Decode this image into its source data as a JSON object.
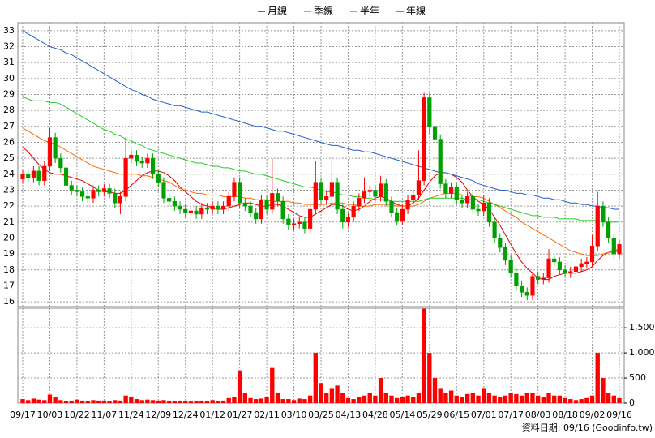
{
  "chart_data": {
    "type": "candlestick",
    "footer": "資料日期: 09/16 (Goodinfo.tw)",
    "categories": [
      "09/17",
      null,
      null,
      null,
      null,
      "10/03",
      null,
      null,
      null,
      null,
      "10/22",
      null,
      null,
      null,
      null,
      "11/07",
      null,
      null,
      null,
      null,
      "11/24",
      null,
      null,
      null,
      null,
      "12/09",
      null,
      null,
      null,
      null,
      "12/24",
      null,
      null,
      null,
      null,
      "01/12",
      null,
      null,
      null,
      null,
      "01/27",
      null,
      null,
      null,
      null,
      "02/11",
      null,
      null,
      null,
      null,
      "03/10",
      null,
      null,
      null,
      null,
      "03/25",
      null,
      null,
      null,
      null,
      "04/13",
      null,
      null,
      null,
      null,
      "04/28",
      null,
      null,
      null,
      null,
      "05/14",
      null,
      null,
      null,
      null,
      "05/29",
      null,
      null,
      null,
      null,
      "06/15",
      null,
      null,
      null,
      null,
      "07/01",
      null,
      null,
      null,
      null,
      "07/17",
      null,
      null,
      null,
      null,
      "08/03",
      null,
      null,
      null,
      null,
      "08/18",
      null,
      null,
      null,
      null,
      "09/02",
      null,
      null,
      null,
      null,
      "09/16"
    ],
    "up_color": "#ff0000",
    "down_color": "#00a000",
    "volume_color": "#ff0000",
    "open": [
      23.7,
      24.0,
      23.8,
      24.2,
      23.6,
      24.5,
      26.3,
      25.0,
      24.4,
      23.3,
      23.0,
      22.9,
      22.6,
      22.5,
      23.0,
      22.9,
      23.1,
      22.8,
      22.2,
      22.6,
      25.0,
      25.2,
      24.8,
      24.7,
      25.0,
      24.0,
      23.5,
      22.5,
      22.3,
      22.0,
      21.8,
      21.6,
      21.7,
      21.5,
      21.9,
      21.8,
      22.0,
      21.8,
      22.0,
      22.6,
      23.5,
      22.2,
      22.0,
      21.6,
      21.2,
      22.4,
      21.8,
      22.8,
      22.3,
      21.2,
      20.8,
      20.9,
      21.0,
      20.6,
      21.8,
      23.5,
      22.4,
      22.6,
      23.5,
      21.8,
      21.0,
      21.3,
      22.0,
      22.5,
      22.9,
      23.0,
      22.6,
      23.4,
      22.3,
      21.6,
      21.1,
      21.8,
      22.4,
      22.7,
      23.6,
      28.8,
      27.0,
      26.2,
      23.4,
      22.8,
      23.2,
      22.4,
      22.2,
      22.6,
      21.8,
      21.7,
      22.2,
      21.0,
      20.0,
      19.4,
      18.6,
      17.8,
      17.0,
      16.6,
      16.4,
      17.6,
      17.4,
      17.5,
      18.7,
      18.5,
      18.0,
      17.8,
      17.9,
      18.2,
      18.4,
      18.5,
      19.5,
      22.0,
      21.0,
      20.0,
      19.0
    ],
    "high": [
      24.3,
      24.3,
      24.5,
      24.5,
      24.8,
      26.9,
      26.6,
      25.3,
      24.7,
      23.6,
      23.3,
      23.2,
      22.9,
      23.3,
      23.3,
      23.4,
      23.4,
      23.1,
      22.9,
      26.3,
      25.5,
      25.5,
      25.1,
      25.3,
      25.3,
      24.3,
      23.8,
      22.8,
      22.6,
      22.3,
      22.1,
      22.0,
      22.0,
      22.2,
      22.2,
      22.3,
      22.3,
      22.3,
      22.9,
      23.8,
      23.8,
      22.5,
      22.3,
      21.9,
      22.7,
      22.7,
      25.0,
      23.1,
      22.6,
      21.5,
      21.2,
      21.3,
      21.3,
      22.1,
      24.8,
      23.8,
      22.9,
      24.8,
      23.8,
      22.1,
      21.6,
      22.3,
      22.8,
      23.8,
      23.3,
      23.3,
      23.9,
      23.7,
      22.6,
      21.9,
      22.1,
      22.7,
      23.0,
      25.5,
      29.1,
      29.1,
      27.3,
      26.5,
      23.7,
      23.5,
      23.5,
      22.7,
      22.9,
      22.9,
      22.1,
      22.7,
      22.5,
      21.3,
      20.3,
      19.7,
      18.9,
      18.1,
      17.3,
      16.9,
      17.9,
      17.9,
      17.8,
      19.3,
      19.0,
      18.8,
      18.3,
      18.2,
      18.5,
      18.7,
      18.8,
      20.2,
      22.9,
      22.3,
      21.3,
      20.3,
      19.9
    ],
    "low": [
      23.4,
      23.5,
      23.5,
      23.3,
      23.3,
      24.2,
      24.7,
      24.1,
      23.0,
      22.7,
      22.6,
      22.3,
      22.2,
      22.2,
      22.6,
      22.6,
      22.5,
      21.9,
      21.5,
      22.3,
      24.7,
      24.5,
      24.4,
      24.4,
      23.7,
      23.2,
      22.2,
      22.0,
      21.7,
      21.5,
      21.3,
      21.3,
      21.2,
      21.2,
      21.5,
      21.5,
      21.5,
      21.5,
      21.7,
      22.3,
      21.9,
      21.7,
      21.3,
      20.9,
      20.9,
      21.5,
      21.5,
      22.0,
      20.9,
      20.5,
      20.5,
      20.6,
      20.3,
      20.3,
      21.5,
      22.1,
      22.1,
      22.3,
      21.5,
      20.6,
      20.7,
      21.0,
      21.7,
      22.2,
      22.6,
      22.3,
      22.3,
      22.0,
      21.3,
      20.8,
      20.8,
      21.5,
      22.1,
      22.4,
      23.3,
      26.5,
      25.6,
      23.1,
      22.5,
      22.5,
      22.1,
      21.9,
      21.9,
      21.5,
      21.4,
      21.4,
      20.7,
      19.7,
      19.1,
      18.3,
      17.5,
      16.7,
      16.3,
      16.1,
      16.1,
      17.1,
      17.1,
      17.2,
      18.2,
      17.7,
      17.5,
      17.5,
      17.6,
      17.9,
      18.1,
      18.2,
      19.2,
      20.7,
      19.7,
      18.7,
      18.7
    ],
    "close": [
      24.0,
      23.8,
      24.2,
      23.6,
      24.5,
      26.3,
      25.0,
      24.4,
      23.3,
      23.0,
      22.9,
      22.6,
      22.5,
      23.0,
      22.9,
      23.1,
      22.8,
      22.2,
      22.6,
      25.0,
      25.2,
      24.8,
      24.7,
      25.0,
      24.0,
      23.5,
      22.5,
      22.3,
      22.0,
      21.8,
      21.6,
      21.7,
      21.5,
      21.9,
      21.8,
      22.0,
      21.8,
      22.0,
      22.6,
      23.5,
      22.2,
      22.0,
      21.6,
      21.2,
      22.4,
      21.8,
      22.8,
      22.3,
      21.2,
      20.8,
      20.9,
      21.0,
      20.6,
      21.8,
      23.5,
      22.4,
      22.6,
      23.5,
      21.8,
      21.0,
      21.3,
      22.0,
      22.5,
      22.9,
      23.0,
      22.6,
      23.4,
      22.3,
      21.6,
      21.1,
      21.8,
      22.4,
      22.7,
      23.6,
      28.8,
      27.0,
      26.2,
      23.4,
      22.8,
      23.2,
      22.4,
      22.2,
      22.6,
      21.8,
      21.7,
      22.2,
      21.0,
      20.0,
      19.4,
      18.6,
      17.8,
      17.0,
      16.6,
      16.4,
      17.6,
      17.4,
      17.5,
      18.7,
      18.5,
      18.0,
      17.8,
      17.9,
      18.2,
      18.4,
      18.5,
      19.5,
      22.0,
      21.0,
      20.0,
      19.0,
      19.6
    ],
    "volume": [
      80,
      60,
      90,
      70,
      60,
      170,
      120,
      60,
      40,
      50,
      70,
      50,
      40,
      60,
      50,
      50,
      40,
      60,
      50,
      150,
      120,
      80,
      60,
      70,
      60,
      50,
      60,
      40,
      40,
      50,
      40,
      30,
      40,
      50,
      40,
      60,
      40,
      50,
      100,
      120,
      650,
      200,
      100,
      80,
      90,
      120,
      700,
      200,
      80,
      80,
      60,
      90,
      80,
      150,
      1000,
      400,
      200,
      300,
      350,
      200,
      100,
      80,
      120,
      150,
      200,
      150,
      500,
      200,
      150,
      100,
      120,
      150,
      120,
      200,
      1880,
      1000,
      500,
      300,
      200,
      250,
      150,
      120,
      180,
      200,
      150,
      300,
      200,
      150,
      120,
      150,
      200,
      180,
      150,
      200,
      200,
      150,
      120,
      200,
      150,
      150,
      100,
      80,
      60,
      80,
      100,
      150,
      1000,
      500,
      200,
      150,
      100
    ],
    "series": [
      {
        "name": "月線",
        "color": "#e00000",
        "values": [
          25.7,
          25.4,
          25.0,
          24.6,
          24.3,
          24.1,
          24.0,
          24.0,
          23.9,
          23.8,
          23.7,
          23.6,
          23.4,
          23.2,
          23.0,
          22.9,
          22.9,
          22.8,
          22.8,
          23.0,
          23.3,
          23.6,
          23.9,
          24.1,
          24.2,
          24.2,
          24.1,
          23.9,
          23.6,
          23.2,
          22.9,
          22.6,
          22.3,
          22.1,
          22.0,
          21.9,
          21.8,
          21.8,
          21.9,
          22.0,
          22.1,
          22.2,
          22.2,
          22.1,
          22.0,
          22.0,
          22.1,
          22.1,
          22.0,
          21.8,
          21.6,
          21.4,
          21.3,
          21.3,
          21.5,
          21.7,
          21.9,
          22.1,
          22.1,
          22.0,
          21.8,
          21.7,
          21.8,
          22.0,
          22.3,
          22.5,
          22.6,
          22.5,
          22.3,
          22.1,
          22.0,
          22.0,
          22.2,
          22.5,
          23.0,
          23.5,
          23.9,
          24.1,
          24.1,
          24.0,
          23.8,
          23.5,
          23.0,
          22.6,
          22.3,
          22.1,
          21.8,
          21.3,
          20.8,
          20.2,
          19.6,
          19.0,
          18.5,
          18.1,
          17.8,
          17.5,
          17.4,
          17.4,
          17.6,
          17.7,
          17.8,
          17.8,
          17.8,
          17.9,
          18.0,
          18.2,
          18.6,
          18.9,
          19.1,
          19.2,
          19.3
        ]
      },
      {
        "name": "季線",
        "color": "#ff6a00",
        "values": [
          26.9,
          26.7,
          26.5,
          26.3,
          26.1,
          26.0,
          25.9,
          25.7,
          25.5,
          25.3,
          25.1,
          24.9,
          24.7,
          24.5,
          24.4,
          24.3,
          24.2,
          24.1,
          24.0,
          24.0,
          24.0,
          24.0,
          23.9,
          23.9,
          23.8,
          23.7,
          23.6,
          23.5,
          23.3,
          23.1,
          23.0,
          22.9,
          22.8,
          22.8,
          22.7,
          22.7,
          22.7,
          22.6,
          22.6,
          22.6,
          22.6,
          22.5,
          22.5,
          22.4,
          22.4,
          22.4,
          22.3,
          22.3,
          22.3,
          22.3,
          22.2,
          22.2,
          22.1,
          22.1,
          22.1,
          22.1,
          22.1,
          22.2,
          22.2,
          22.2,
          22.1,
          22.1,
          22.0,
          22.0,
          22.0,
          22.1,
          22.1,
          22.1,
          22.1,
          22.0,
          22.0,
          22.0,
          22.0,
          22.1,
          22.3,
          22.5,
          22.6,
          22.7,
          22.8,
          22.8,
          22.8,
          22.7,
          22.7,
          22.6,
          22.6,
          22.5,
          22.3,
          22.1,
          21.9,
          21.7,
          21.5,
          21.3,
          21.0,
          20.8,
          20.6,
          20.4,
          20.2,
          20.0,
          19.8,
          19.6,
          19.4,
          19.2,
          19.1,
          19.0,
          18.9,
          18.9,
          18.9,
          19.0,
          19.1,
          19.1,
          19.2
        ]
      },
      {
        "name": "半年",
        "color": "#22cc22",
        "values": [
          28.9,
          28.7,
          28.6,
          28.6,
          28.6,
          28.5,
          28.5,
          28.4,
          28.2,
          28.0,
          27.8,
          27.6,
          27.4,
          27.2,
          27.0,
          26.8,
          26.7,
          26.5,
          26.4,
          26.2,
          26.1,
          25.9,
          25.8,
          25.6,
          25.5,
          25.4,
          25.3,
          25.2,
          25.1,
          25.0,
          24.9,
          24.8,
          24.7,
          24.7,
          24.6,
          24.5,
          24.5,
          24.4,
          24.4,
          24.3,
          24.2,
          24.2,
          24.1,
          24.0,
          24.0,
          23.9,
          23.8,
          23.7,
          23.6,
          23.5,
          23.4,
          23.3,
          23.2,
          23.2,
          23.1,
          23.0,
          22.9,
          22.9,
          22.8,
          22.7,
          22.7,
          22.6,
          22.6,
          22.5,
          22.5,
          22.4,
          22.4,
          22.4,
          22.3,
          22.3,
          22.3,
          22.3,
          22.3,
          22.3,
          22.4,
          22.5,
          22.5,
          22.5,
          22.5,
          22.5,
          22.5,
          22.5,
          22.4,
          22.4,
          22.4,
          22.3,
          22.2,
          22.1,
          22.0,
          21.9,
          21.8,
          21.7,
          21.6,
          21.5,
          21.4,
          21.4,
          21.3,
          21.3,
          21.3,
          21.2,
          21.2,
          21.2,
          21.2,
          21.1,
          21.1,
          21.1,
          21.1,
          21.0,
          21.0,
          21.0,
          21.0
        ]
      },
      {
        "name": "年線",
        "color": "#1f5fd0",
        "values": [
          33.0,
          32.8,
          32.6,
          32.4,
          32.2,
          32.0,
          31.9,
          31.8,
          31.6,
          31.5,
          31.3,
          31.1,
          30.9,
          30.7,
          30.5,
          30.3,
          30.1,
          29.9,
          29.7,
          29.5,
          29.3,
          29.2,
          29.0,
          28.9,
          28.7,
          28.6,
          28.5,
          28.4,
          28.3,
          28.3,
          28.2,
          28.1,
          28.0,
          27.9,
          27.9,
          27.8,
          27.7,
          27.6,
          27.5,
          27.4,
          27.3,
          27.2,
          27.1,
          27.0,
          27.0,
          26.9,
          26.8,
          26.7,
          26.7,
          26.6,
          26.5,
          26.4,
          26.3,
          26.2,
          26.1,
          26.0,
          25.9,
          25.8,
          25.8,
          25.7,
          25.6,
          25.5,
          25.5,
          25.4,
          25.4,
          25.3,
          25.2,
          25.1,
          25.0,
          24.9,
          24.8,
          24.7,
          24.6,
          24.5,
          24.4,
          24.3,
          24.2,
          24.1,
          24.1,
          24.0,
          23.9,
          23.8,
          23.7,
          23.6,
          23.4,
          23.3,
          23.2,
          23.1,
          23.0,
          23.0,
          22.9,
          22.8,
          22.8,
          22.7,
          22.7,
          22.6,
          22.5,
          22.5,
          22.4,
          22.4,
          22.3,
          22.2,
          22.2,
          22.1,
          22.1,
          22.0,
          22.0,
          21.9,
          21.9,
          21.8,
          21.8
        ]
      }
    ],
    "ylim": [
      15.7,
      33.5
    ],
    "yticks": [
      16,
      17,
      18,
      19,
      20,
      21,
      22,
      23,
      24,
      25,
      26,
      27,
      28,
      29,
      30,
      31,
      32,
      33
    ],
    "y2lim": [
      0,
      1890
    ],
    "y2ticks": [
      0,
      500,
      {
        "value": 1000,
        "label": "1,000"
      },
      {
        "value": 1500,
        "label": "1,500"
      }
    ],
    "grid": true
  }
}
